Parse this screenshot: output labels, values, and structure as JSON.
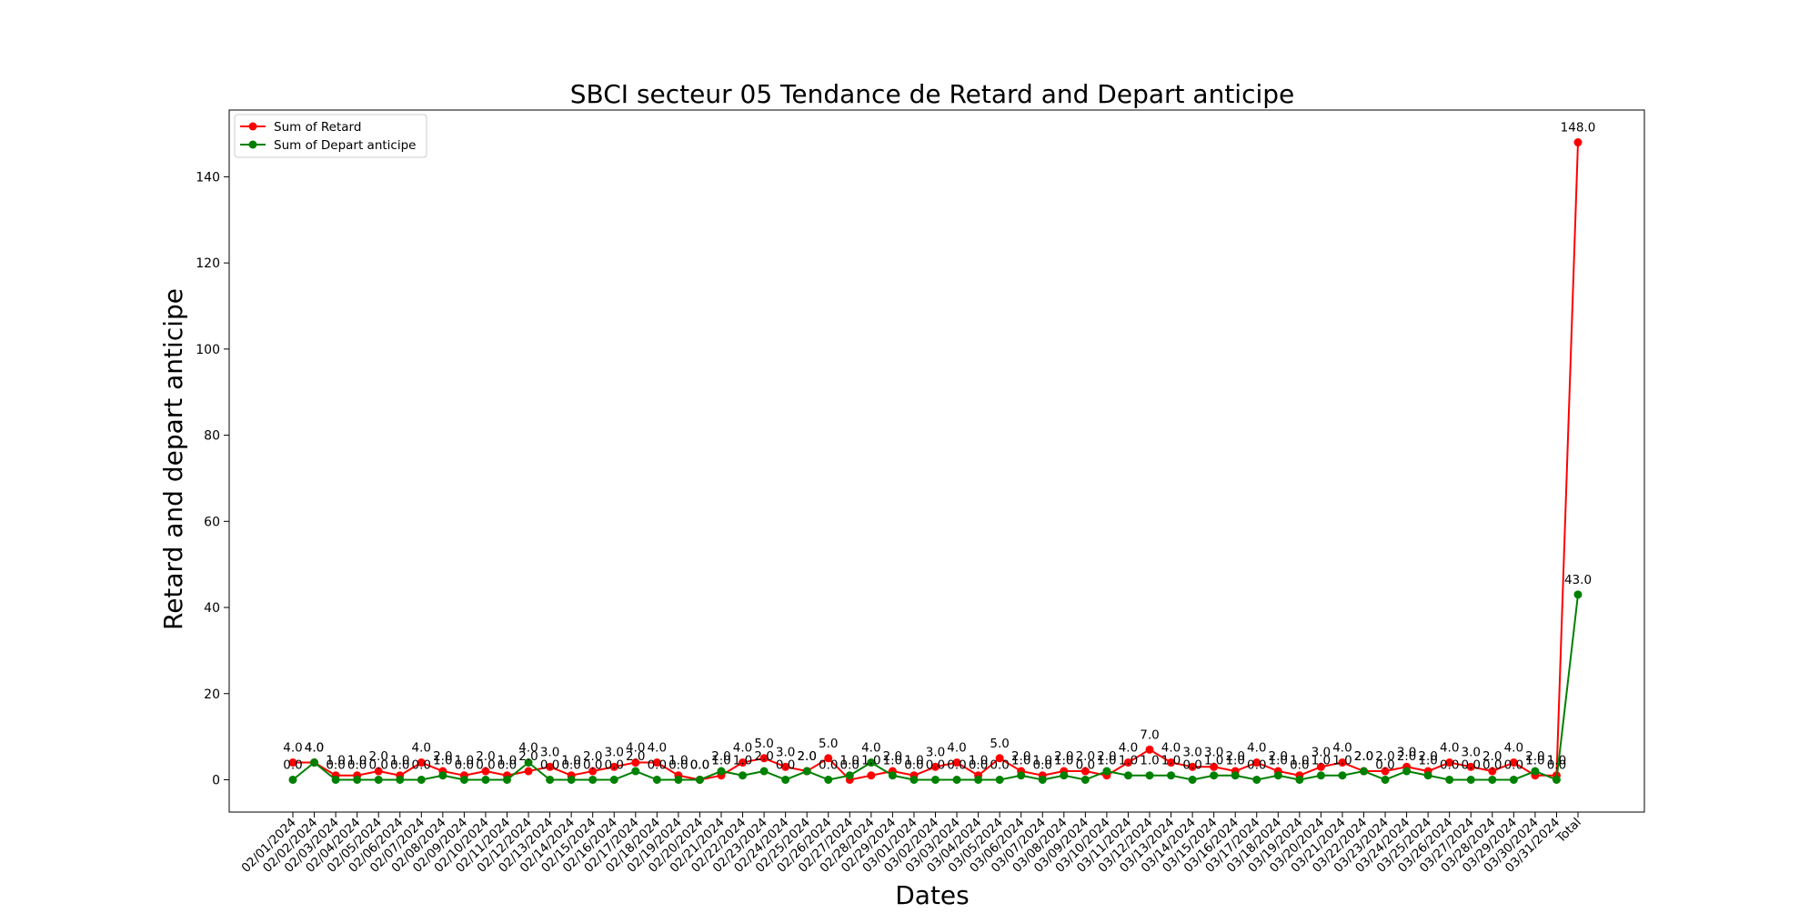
{
  "chart_data": {
    "type": "line",
    "title": "SBCI secteur 05 Tendance de Retard and Depart anticipe",
    "xlabel": "Dates",
    "ylabel": "Retard and depart anticipe",
    "ylim": [
      -7.5,
      155.5
    ],
    "yticks": [
      0,
      20,
      40,
      60,
      80,
      100,
      120,
      140
    ],
    "grid": false,
    "legend_position": "top-left",
    "categories": [
      "02/01/2024",
      "02/02/2024",
      "02/03/2024",
      "02/04/2024",
      "02/05/2024",
      "02/06/2024",
      "02/07/2024",
      "02/08/2024",
      "02/09/2024",
      "02/10/2024",
      "02/11/2024",
      "02/12/2024",
      "02/13/2024",
      "02/14/2024",
      "02/15/2024",
      "02/16/2024",
      "02/17/2024",
      "02/18/2024",
      "02/19/2024",
      "02/20/2024",
      "02/21/2024",
      "02/22/2024",
      "02/23/2024",
      "02/24/2024",
      "02/25/2024",
      "02/26/2024",
      "02/27/2024",
      "02/28/2024",
      "02/29/2024",
      "03/01/2024",
      "03/02/2024",
      "03/03/2024",
      "03/04/2024",
      "03/05/2024",
      "03/06/2024",
      "03/07/2024",
      "03/08/2024",
      "03/09/2024",
      "03/10/2024",
      "03/11/2024",
      "03/12/2024",
      "03/13/2024",
      "03/14/2024",
      "03/15/2024",
      "03/16/2024",
      "03/17/2024",
      "03/18/2024",
      "03/19/2024",
      "03/20/2024",
      "03/21/2024",
      "03/22/2024",
      "03/23/2024",
      "03/24/2024",
      "03/25/2024",
      "03/26/2024",
      "03/27/2024",
      "03/28/2024",
      "03/29/2024",
      "03/30/2024",
      "03/31/2024",
      "Total"
    ],
    "series": [
      {
        "name": "Sum of Retard",
        "color": "#ff0000",
        "values": [
          4,
          4,
          1,
          1,
          2,
          1,
          4,
          2,
          1,
          2,
          1,
          2,
          3,
          1,
          2,
          3,
          4,
          4,
          1,
          0,
          1,
          4,
          5,
          3,
          2,
          5,
          0,
          1,
          2,
          1,
          3,
          4,
          1,
          5,
          2,
          1,
          2,
          2,
          1,
          4,
          7,
          4,
          3,
          3,
          2,
          4,
          2,
          1,
          3,
          4,
          2,
          2,
          3,
          2,
          4,
          3,
          2,
          4,
          1,
          1,
          148
        ]
      },
      {
        "name": "Sum of Depart anticipe",
        "color": "#008000",
        "values": [
          0,
          4,
          0,
          0,
          0,
          0,
          0,
          1,
          0,
          0,
          0,
          4,
          0,
          0,
          0,
          0,
          2,
          0,
          0,
          0,
          2,
          1,
          2,
          0,
          2,
          0,
          1,
          4,
          1,
          0,
          0,
          0,
          0,
          0,
          1,
          0,
          1,
          0,
          2,
          1,
          1,
          1,
          0,
          1,
          1,
          0,
          1,
          0,
          1,
          1,
          2,
          0,
          2,
          1,
          0,
          0,
          0,
          0,
          2,
          0,
          43
        ]
      }
    ]
  }
}
